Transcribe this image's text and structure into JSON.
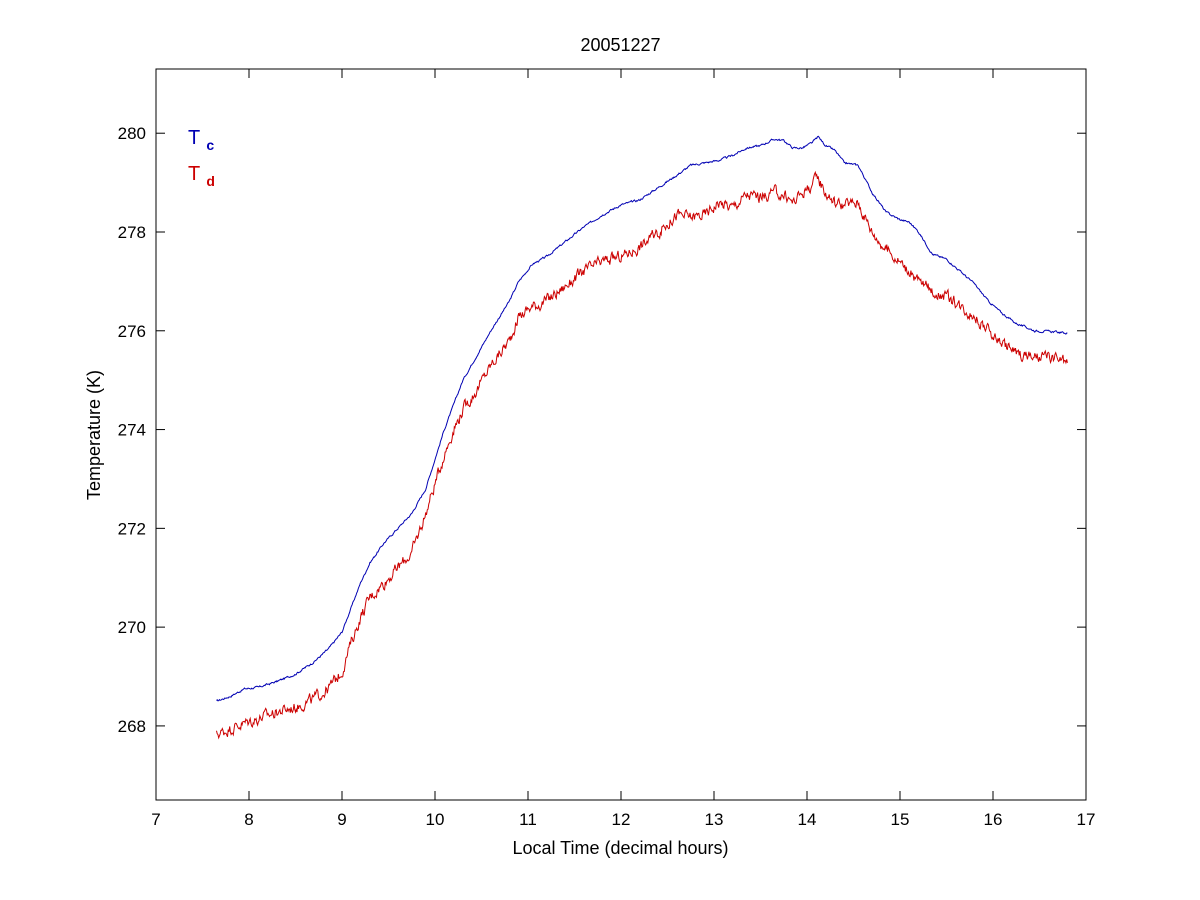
{
  "chart_data": {
    "type": "line",
    "title": "20051227",
    "xlabel": "Local Time (decimal hours)",
    "ylabel": "Temperature (K)",
    "xlim": [
      7,
      17
    ],
    "ylim": [
      266.5,
      281.3
    ],
    "x_ticks": [
      7,
      8,
      9,
      10,
      11,
      12,
      13,
      14,
      15,
      16,
      17
    ],
    "y_ticks": [
      268,
      270,
      272,
      274,
      276,
      278,
      280
    ],
    "grid": false,
    "legend_placement": "top-left",
    "series": [
      {
        "base": "T",
        "sub": "c",
        "color": "#0000b3",
        "noise": 0.04,
        "points": [
          [
            7.65,
            268.5
          ],
          [
            7.8,
            268.6
          ],
          [
            7.95,
            268.75
          ],
          [
            8.1,
            268.78
          ],
          [
            8.3,
            268.9
          ],
          [
            8.5,
            269.05
          ],
          [
            8.7,
            269.3
          ],
          [
            8.85,
            269.55
          ],
          [
            9.0,
            269.9
          ],
          [
            9.1,
            270.4
          ],
          [
            9.2,
            270.9
          ],
          [
            9.3,
            271.3
          ],
          [
            9.45,
            271.7
          ],
          [
            9.6,
            272.0
          ],
          [
            9.75,
            272.3
          ],
          [
            9.9,
            272.8
          ],
          [
            10.0,
            273.4
          ],
          [
            10.1,
            274.0
          ],
          [
            10.2,
            274.5
          ],
          [
            10.3,
            275.0
          ],
          [
            10.45,
            275.5
          ],
          [
            10.6,
            276.0
          ],
          [
            10.8,
            276.6
          ],
          [
            10.9,
            277.0
          ],
          [
            11.05,
            277.35
          ],
          [
            11.2,
            277.5
          ],
          [
            11.4,
            277.8
          ],
          [
            11.6,
            278.1
          ],
          [
            11.8,
            278.35
          ],
          [
            12.0,
            278.55
          ],
          [
            12.2,
            278.65
          ],
          [
            12.4,
            278.9
          ],
          [
            12.6,
            279.15
          ],
          [
            12.75,
            279.35
          ],
          [
            12.9,
            279.4
          ],
          [
            13.05,
            279.45
          ],
          [
            13.2,
            279.55
          ],
          [
            13.35,
            279.7
          ],
          [
            13.5,
            279.75
          ],
          [
            13.65,
            279.88
          ],
          [
            13.75,
            279.85
          ],
          [
            13.85,
            279.7
          ],
          [
            13.95,
            279.7
          ],
          [
            14.05,
            279.8
          ],
          [
            14.12,
            279.93
          ],
          [
            14.2,
            279.75
          ],
          [
            14.3,
            279.65
          ],
          [
            14.4,
            279.4
          ],
          [
            14.55,
            279.35
          ],
          [
            14.7,
            278.8
          ],
          [
            14.85,
            278.4
          ],
          [
            15.0,
            278.25
          ],
          [
            15.1,
            278.2
          ],
          [
            15.2,
            278.0
          ],
          [
            15.35,
            277.55
          ],
          [
            15.5,
            277.45
          ],
          [
            15.65,
            277.2
          ],
          [
            15.8,
            276.95
          ],
          [
            15.95,
            276.6
          ],
          [
            16.1,
            276.35
          ],
          [
            16.25,
            276.15
          ],
          [
            16.45,
            276.0
          ],
          [
            16.65,
            275.98
          ],
          [
            16.8,
            275.95
          ]
        ]
      },
      {
        "base": "T",
        "sub": "d",
        "color": "#cc0000",
        "noise": 0.22,
        "points": [
          [
            7.65,
            267.82
          ],
          [
            7.8,
            267.95
          ],
          [
            7.95,
            268.05
          ],
          [
            8.1,
            268.15
          ],
          [
            8.3,
            268.28
          ],
          [
            8.5,
            268.38
          ],
          [
            8.7,
            268.55
          ],
          [
            8.85,
            268.75
          ],
          [
            9.0,
            269.1
          ],
          [
            9.1,
            269.7
          ],
          [
            9.2,
            270.2
          ],
          [
            9.3,
            270.6
          ],
          [
            9.45,
            270.9
          ],
          [
            9.6,
            271.2
          ],
          [
            9.75,
            271.5
          ],
          [
            9.9,
            272.3
          ],
          [
            10.0,
            272.9
          ],
          [
            10.1,
            273.5
          ],
          [
            10.2,
            274.0
          ],
          [
            10.3,
            274.4
          ],
          [
            10.45,
            274.8
          ],
          [
            10.6,
            275.3
          ],
          [
            10.8,
            275.8
          ],
          [
            10.9,
            276.3
          ],
          [
            11.05,
            276.5
          ],
          [
            11.2,
            276.6
          ],
          [
            11.4,
            276.9
          ],
          [
            11.6,
            277.2
          ],
          [
            11.8,
            277.4
          ],
          [
            12.0,
            277.5
          ],
          [
            12.2,
            277.7
          ],
          [
            12.4,
            278.0
          ],
          [
            12.6,
            278.35
          ],
          [
            12.75,
            278.3
          ],
          [
            12.9,
            278.35
          ],
          [
            13.05,
            278.6
          ],
          [
            13.2,
            278.5
          ],
          [
            13.35,
            278.75
          ],
          [
            13.5,
            278.7
          ],
          [
            13.65,
            278.8
          ],
          [
            13.75,
            278.75
          ],
          [
            13.85,
            278.6
          ],
          [
            13.95,
            278.8
          ],
          [
            14.05,
            278.95
          ],
          [
            14.12,
            279.1
          ],
          [
            14.2,
            278.8
          ],
          [
            14.3,
            278.6
          ],
          [
            14.4,
            278.55
          ],
          [
            14.55,
            278.6
          ],
          [
            14.7,
            278.0
          ],
          [
            14.85,
            277.65
          ],
          [
            15.0,
            277.4
          ],
          [
            15.1,
            277.2
          ],
          [
            15.2,
            277.0
          ],
          [
            15.35,
            276.8
          ],
          [
            15.5,
            276.7
          ],
          [
            15.65,
            276.5
          ],
          [
            15.8,
            276.3
          ],
          [
            15.95,
            276.0
          ],
          [
            16.1,
            275.75
          ],
          [
            16.25,
            275.55
          ],
          [
            16.45,
            275.45
          ],
          [
            16.65,
            275.45
          ],
          [
            16.8,
            275.35
          ]
        ]
      }
    ]
  }
}
